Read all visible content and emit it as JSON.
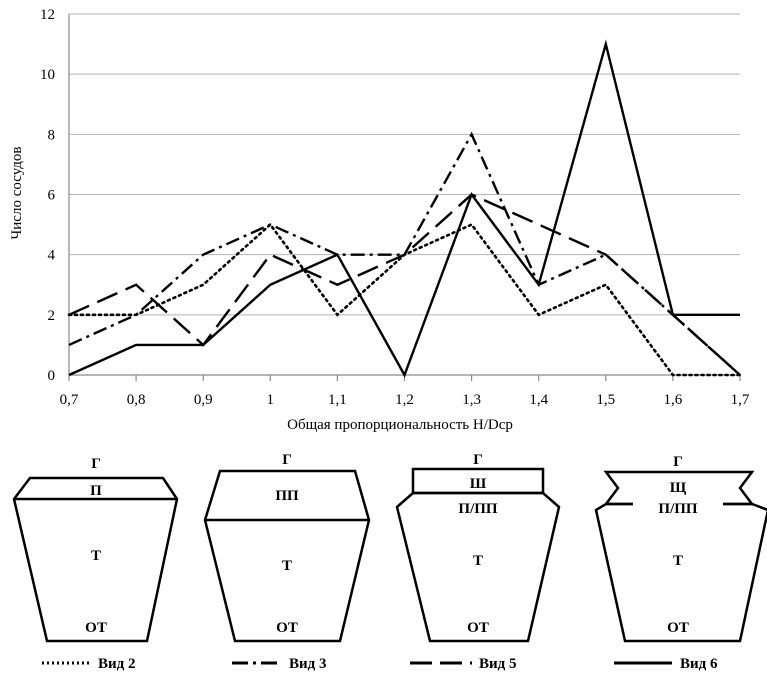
{
  "chart_data": {
    "type": "line",
    "xlabel": "Общая пропорциональность H/Dср",
    "ylabel": "Число сосудов",
    "x": [
      0.7,
      0.8,
      0.9,
      1.0,
      1.1,
      1.2,
      1.3,
      1.4,
      1.5,
      1.6,
      1.7
    ],
    "x_tick_labels": [
      "0,7",
      "0,8",
      "0,9",
      "1",
      "1,1",
      "1,2",
      "1,3",
      "1,4",
      "1,5",
      "1,6",
      "1,7"
    ],
    "y_ticks": [
      0,
      2,
      4,
      6,
      8,
      10,
      12
    ],
    "ylim": [
      0,
      12
    ],
    "xlim": [
      0.7,
      1.7
    ],
    "grid": "horizontal",
    "legend_position": "bottom",
    "series": [
      {
        "name": "Вид 2",
        "style": "dotted",
        "color": "#000000",
        "values": [
          2,
          2,
          3,
          5,
          2,
          4,
          5,
          2,
          3,
          0,
          0
        ]
      },
      {
        "name": "Вид 3",
        "style": "dash-dot",
        "color": "#000000",
        "values": [
          1,
          2,
          4,
          5,
          4,
          4,
          8,
          3,
          4,
          2,
          0
        ]
      },
      {
        "name": "Вид 5",
        "style": "dashed",
        "color": "#000000",
        "values": [
          2,
          3,
          1,
          4,
          3,
          4,
          6,
          5,
          4,
          2,
          0
        ]
      },
      {
        "name": "Вид 6",
        "style": "solid",
        "color": "#000000",
        "values": [
          0,
          1,
          1,
          3,
          4,
          0,
          6,
          3,
          11,
          2,
          2
        ]
      }
    ]
  },
  "vessel_types": [
    {
      "legend": "Вид 2",
      "labels": {
        "top": "Г",
        "upper": "П",
        "body": "Т",
        "bottom": "ОТ"
      }
    },
    {
      "legend": "Вид 3",
      "labels": {
        "top": "Г",
        "upper": "ПП",
        "body": "Т",
        "bottom": "ОТ"
      }
    },
    {
      "legend": "Вид 5",
      "labels": {
        "top": "Г",
        "neck": "Ш",
        "shoulder": "П/ПП",
        "body": "Т",
        "bottom": "ОТ"
      }
    },
    {
      "legend": "Вид 6",
      "labels": {
        "top": "Г",
        "neck": "Щ",
        "shoulder": "П/ПП",
        "body": "Т",
        "bottom": "ОТ"
      }
    }
  ]
}
